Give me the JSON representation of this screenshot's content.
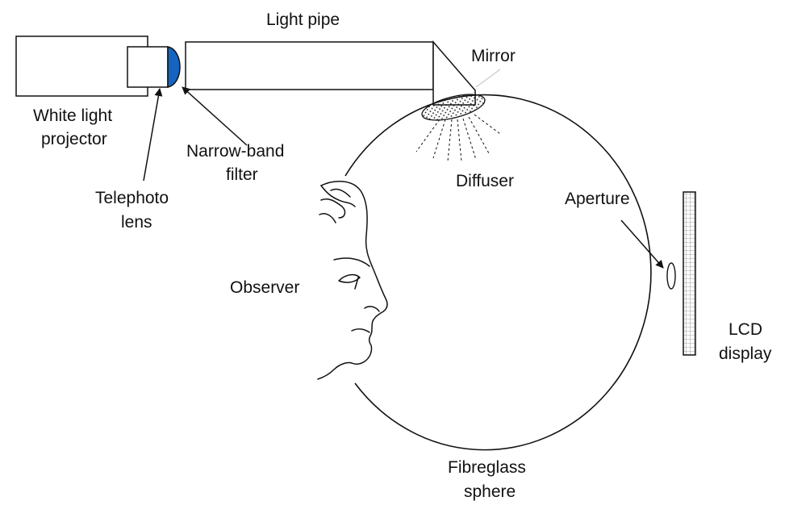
{
  "diagram": {
    "labels": {
      "light_pipe": "Light pipe",
      "mirror": "Mirror",
      "white_light_projector_1": "White light",
      "white_light_projector_2": "projector",
      "narrow_band_filter_1": "Narrow-band",
      "narrow_band_filter_2": "filter",
      "diffuser": "Diffuser",
      "telephoto_lens_1": "Telephoto",
      "telephoto_lens_2": "lens",
      "aperture": "Aperture",
      "observer": "Observer",
      "lcd_display_1": "LCD",
      "lcd_display_2": "display",
      "fibreglass_sphere_1": "Fibreglass",
      "fibreglass_sphere_2": "sphere"
    },
    "colors": {
      "filter_fill": "#1565c0",
      "line": "#111111"
    }
  }
}
